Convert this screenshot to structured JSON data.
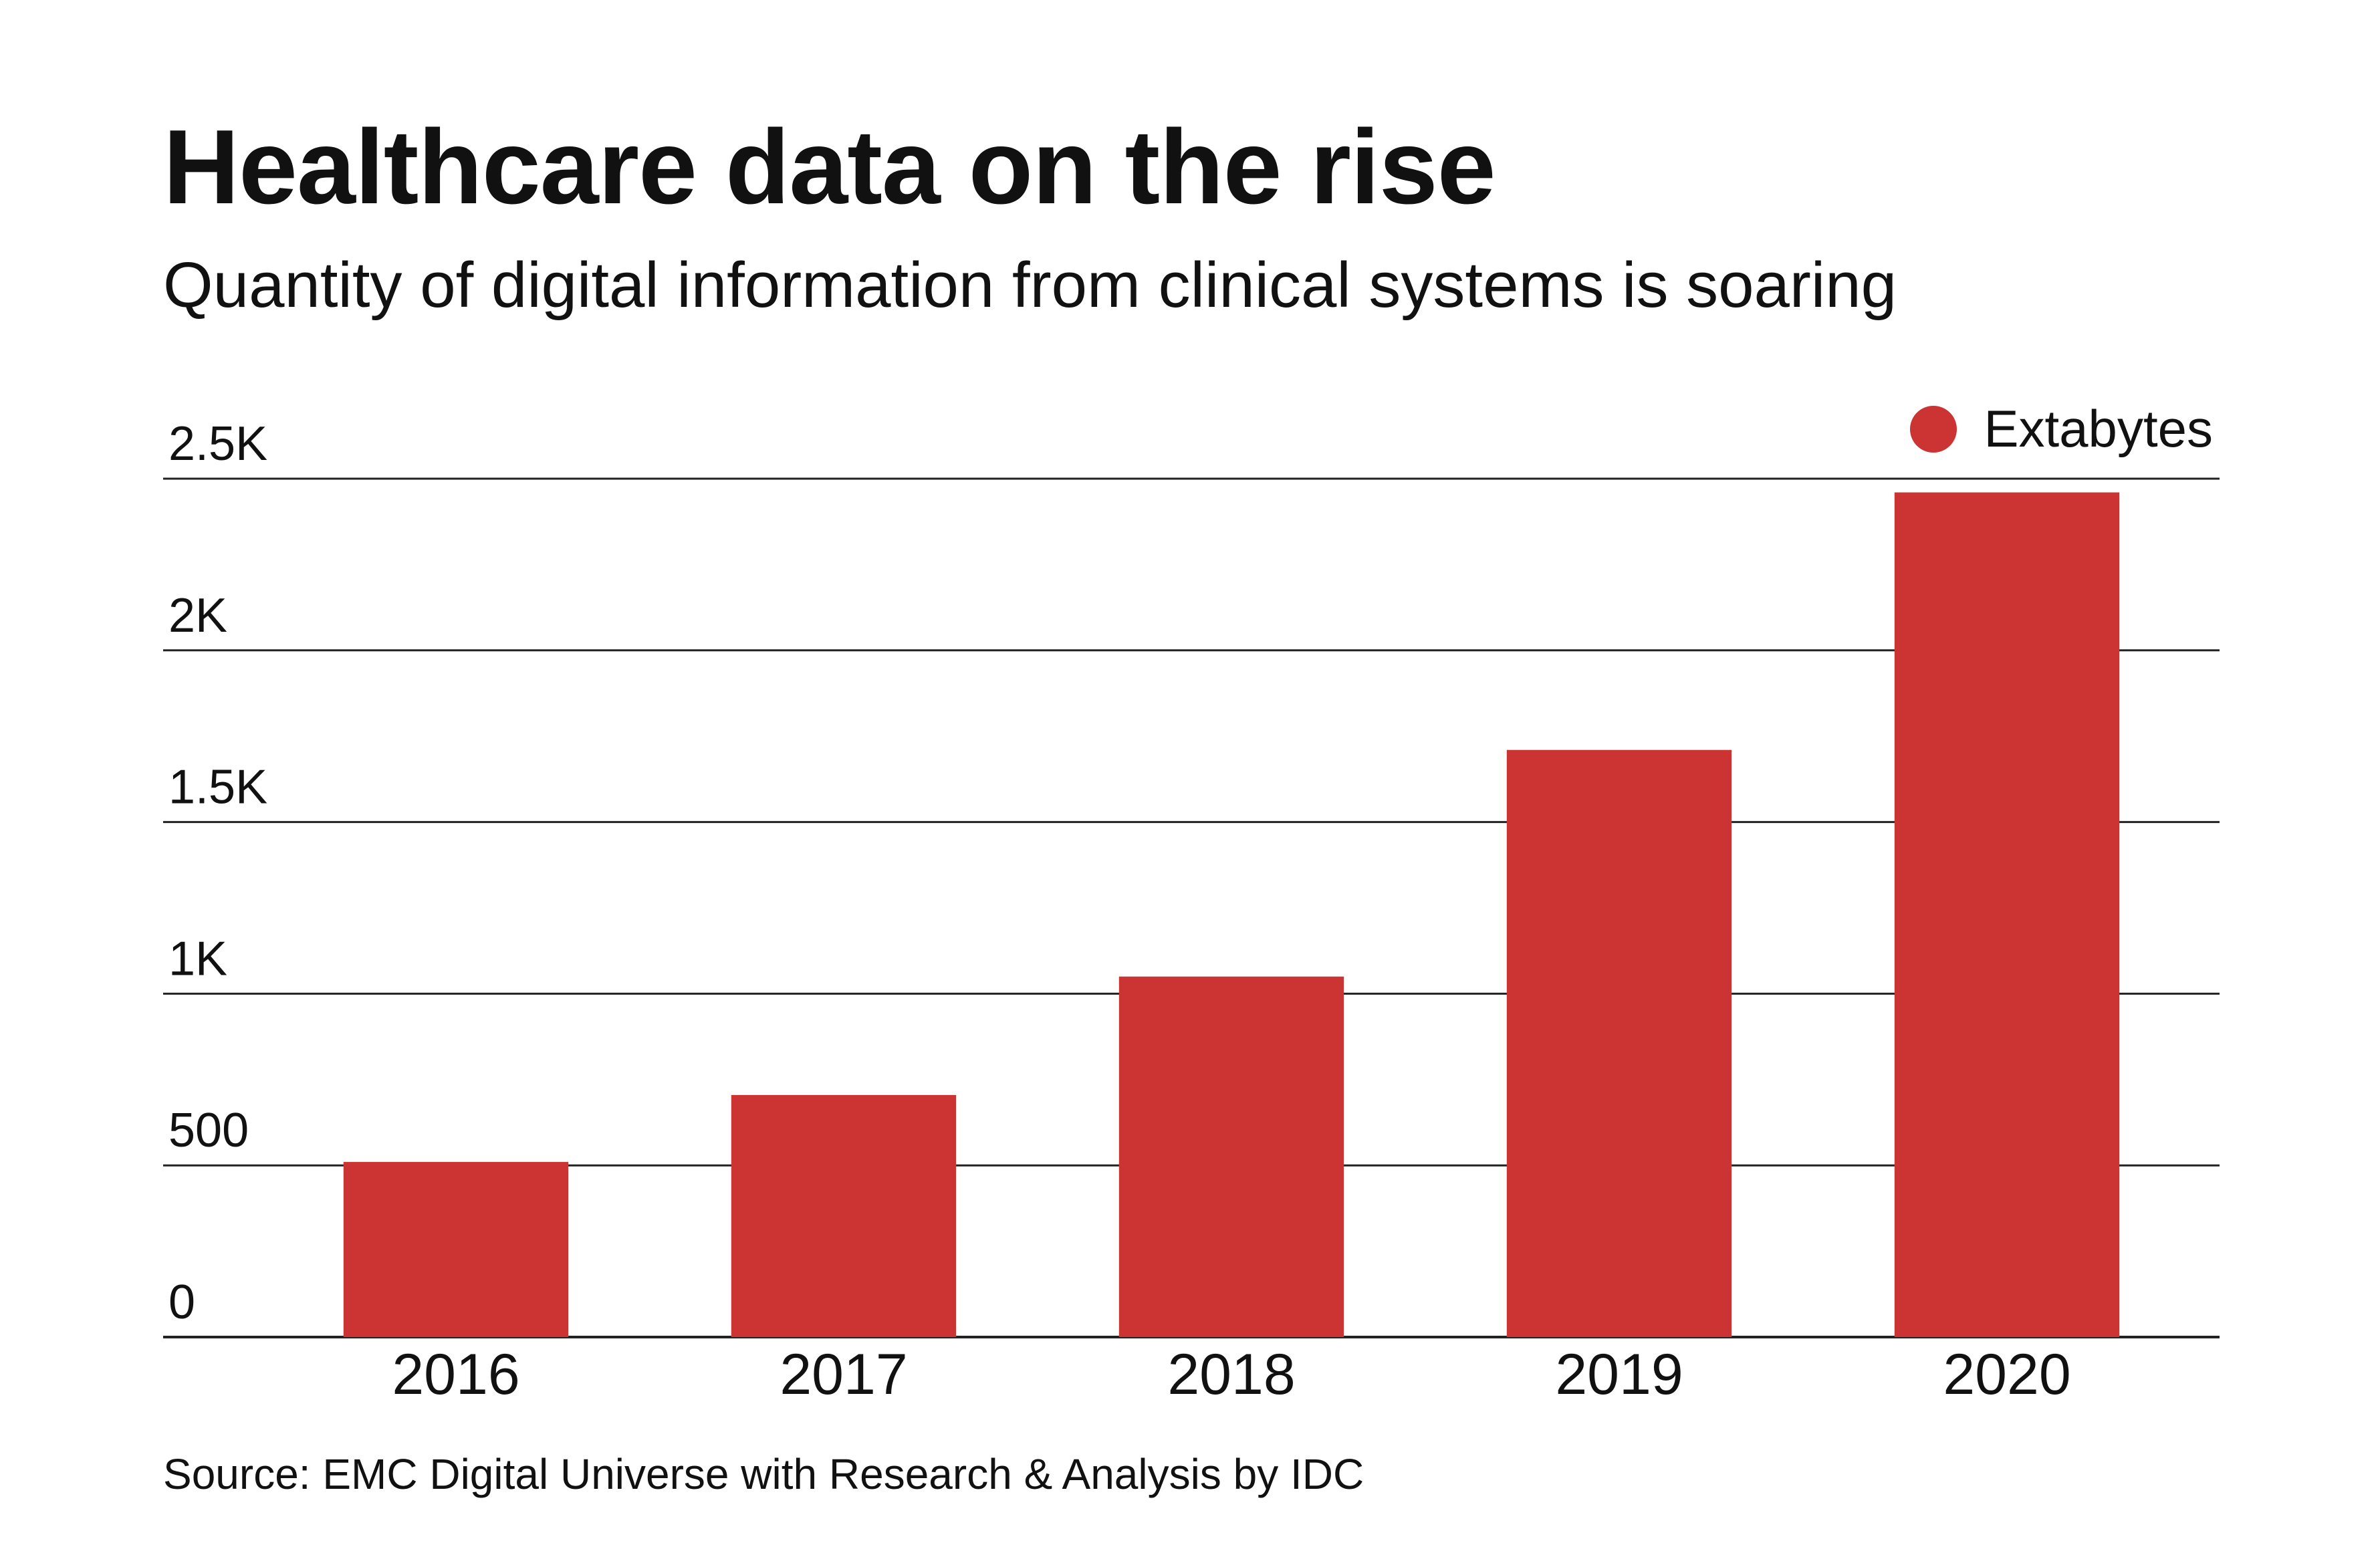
{
  "chart_data": {
    "type": "bar",
    "title": "Healthcare data on the rise",
    "subtitle": "Quantity of digital information from clinical systems is soaring",
    "source": "Source: EMC Digital Universe with Research & Analysis by IDC",
    "categories": [
      "2016",
      "2017",
      "2018",
      "2019",
      "2020"
    ],
    "series": [
      {
        "name": "Extabytes",
        "values": [
          510,
          705,
          1050,
          1710,
          2460
        ]
      }
    ],
    "yticks": [
      {
        "value": 0,
        "label": "0"
      },
      {
        "value": 500,
        "label": "500"
      },
      {
        "value": 1000,
        "label": "1K"
      },
      {
        "value": 1500,
        "label": "1.5K"
      },
      {
        "value": 2000,
        "label": "2K"
      },
      {
        "value": 2500,
        "label": "2.5K"
      }
    ],
    "ylim": [
      0,
      2500
    ],
    "xlabel": "",
    "ylabel": "",
    "grid": true,
    "legend_position": "top-right",
    "bar_color": "#cc3333"
  }
}
